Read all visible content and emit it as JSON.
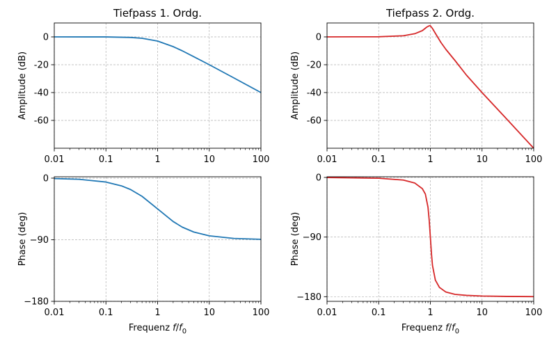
{
  "chart_data": [
    {
      "type": "line",
      "title": "Tiefpass 1. Ordg.",
      "xlabel": "",
      "ylabel": "Amplitude (dB)",
      "xscale": "log",
      "xlim": [
        0.01,
        100
      ],
      "ylim": [
        -80,
        10
      ],
      "xticks": [
        "0.01",
        "0.1",
        "1",
        "10",
        "100"
      ],
      "yticks": [
        "0",
        "-20",
        "-40",
        "-60"
      ],
      "grid": true,
      "series": [
        {
          "color": "#1f77b4",
          "x": [
            0.01,
            0.1,
            0.3,
            0.5,
            1,
            2,
            3,
            5,
            10,
            30,
            100
          ],
          "y": [
            0,
            -0.04,
            -0.4,
            -1,
            -3,
            -7,
            -10,
            -14.2,
            -20,
            -29.5,
            -40
          ]
        }
      ]
    },
    {
      "type": "line",
      "title": "Tiefpass 2. Ordg.",
      "xlabel": "",
      "ylabel": "Amplitude (dB)",
      "xscale": "log",
      "xlim": [
        0.01,
        100
      ],
      "ylim": [
        -80,
        10
      ],
      "xticks": [
        "0.01",
        "0.1",
        "1",
        "10",
        "100"
      ],
      "yticks": [
        "0",
        "-20",
        "-40",
        "-60"
      ],
      "grid": true,
      "series": [
        {
          "color": "#d62728",
          "x": [
            0.01,
            0.1,
            0.3,
            0.5,
            0.7,
            0.85,
            0.95,
            1,
            1.1,
            1.3,
            1.6,
            2,
            3,
            5,
            10,
            30,
            100
          ],
          "y": [
            0,
            0.1,
            0.8,
            2.3,
            4.5,
            7,
            8,
            8,
            6,
            1.5,
            -4,
            -9,
            -17,
            -27.5,
            -40,
            -59,
            -80
          ]
        }
      ]
    },
    {
      "type": "line",
      "title": "",
      "xlabel": "Frequenz f/f0",
      "ylabel": "Phase (deg)",
      "xscale": "log",
      "xlim": [
        0.01,
        100
      ],
      "ylim": [
        -180,
        2
      ],
      "xticks": [
        "0.01",
        "0.1",
        "1",
        "10",
        "100"
      ],
      "yticks": [
        "0",
        "−90",
        "−180"
      ],
      "grid": true,
      "series": [
        {
          "color": "#1f77b4",
          "x": [
            0.01,
            0.03,
            0.1,
            0.2,
            0.3,
            0.5,
            1,
            2,
            3,
            5,
            10,
            30,
            100
          ],
          "y": [
            -0.6,
            -1.7,
            -5.7,
            -11.3,
            -16.7,
            -26.6,
            -45,
            -63.4,
            -71.6,
            -78.7,
            -84.3,
            -88.1,
            -89.4
          ]
        }
      ]
    },
    {
      "type": "line",
      "title": "",
      "xlabel": "Frequenz f/f0",
      "ylabel": "Phase (deg)",
      "xscale": "log",
      "xlim": [
        0.01,
        100
      ],
      "ylim": [
        -187,
        1
      ],
      "xticks": [
        "0.01",
        "0.1",
        "1",
        "10",
        "100"
      ],
      "yticks": [
        "0",
        "−90",
        "−180"
      ],
      "grid": true,
      "series": [
        {
          "color": "#d62728",
          "x": [
            0.01,
            0.1,
            0.3,
            0.5,
            0.7,
            0.8,
            0.9,
            0.95,
            1,
            1.05,
            1.1,
            1.25,
            1.5,
            2,
            3,
            5,
            10,
            30,
            100
          ],
          "y": [
            -0.1,
            -1.2,
            -4,
            -8.5,
            -17,
            -25,
            -45,
            -65,
            -90,
            -115,
            -133,
            -155,
            -166,
            -173,
            -176.5,
            -178,
            -179,
            -179.6,
            -179.9
          ]
        }
      ]
    }
  ]
}
